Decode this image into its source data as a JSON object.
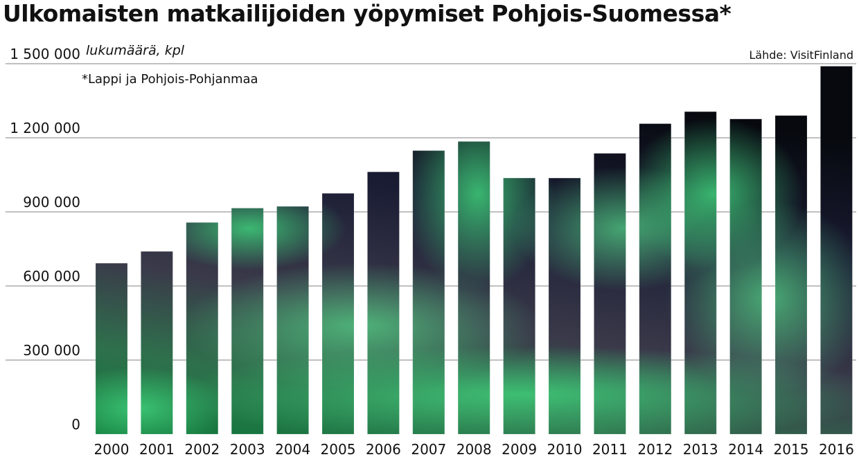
{
  "title": "Ulkomaisten matkailijoiden yöpymiset Pohjois-Suomessa*",
  "unit_label": "lukumäärä, kpl",
  "footnote": "*Lappi ja Pohjois-Pohjanmaa",
  "source": "Lähde: VisitFinland",
  "chart_data": {
    "type": "bar",
    "title": "Ulkomaisten matkailijoiden yöpymiset Pohjois-Suomessa*",
    "xlabel": "",
    "ylabel": "lukumäärä, kpl",
    "ylim": [
      0,
      1500000
    ],
    "yticks": [
      0,
      300000,
      600000,
      900000,
      1200000,
      1500000
    ],
    "ytick_labels": [
      "0",
      "300 000",
      "600 000",
      "900 000",
      "1 200 000",
      "1 500 000"
    ],
    "grid": true,
    "categories": [
      "2000",
      "2001",
      "2002",
      "2003",
      "2004",
      "2005",
      "2006",
      "2007",
      "2008",
      "2009",
      "2010",
      "2011",
      "2012",
      "2013",
      "2014",
      "2015",
      "2016"
    ],
    "values": [
      692000,
      740000,
      857000,
      915000,
      922000,
      975000,
      1062000,
      1148000,
      1185000,
      1037000,
      1037000,
      1137000,
      1257000,
      1306000,
      1276000,
      1290000,
      1490000
    ],
    "bar_style": "aurora borealis photo (green glow on dark night sky)"
  }
}
